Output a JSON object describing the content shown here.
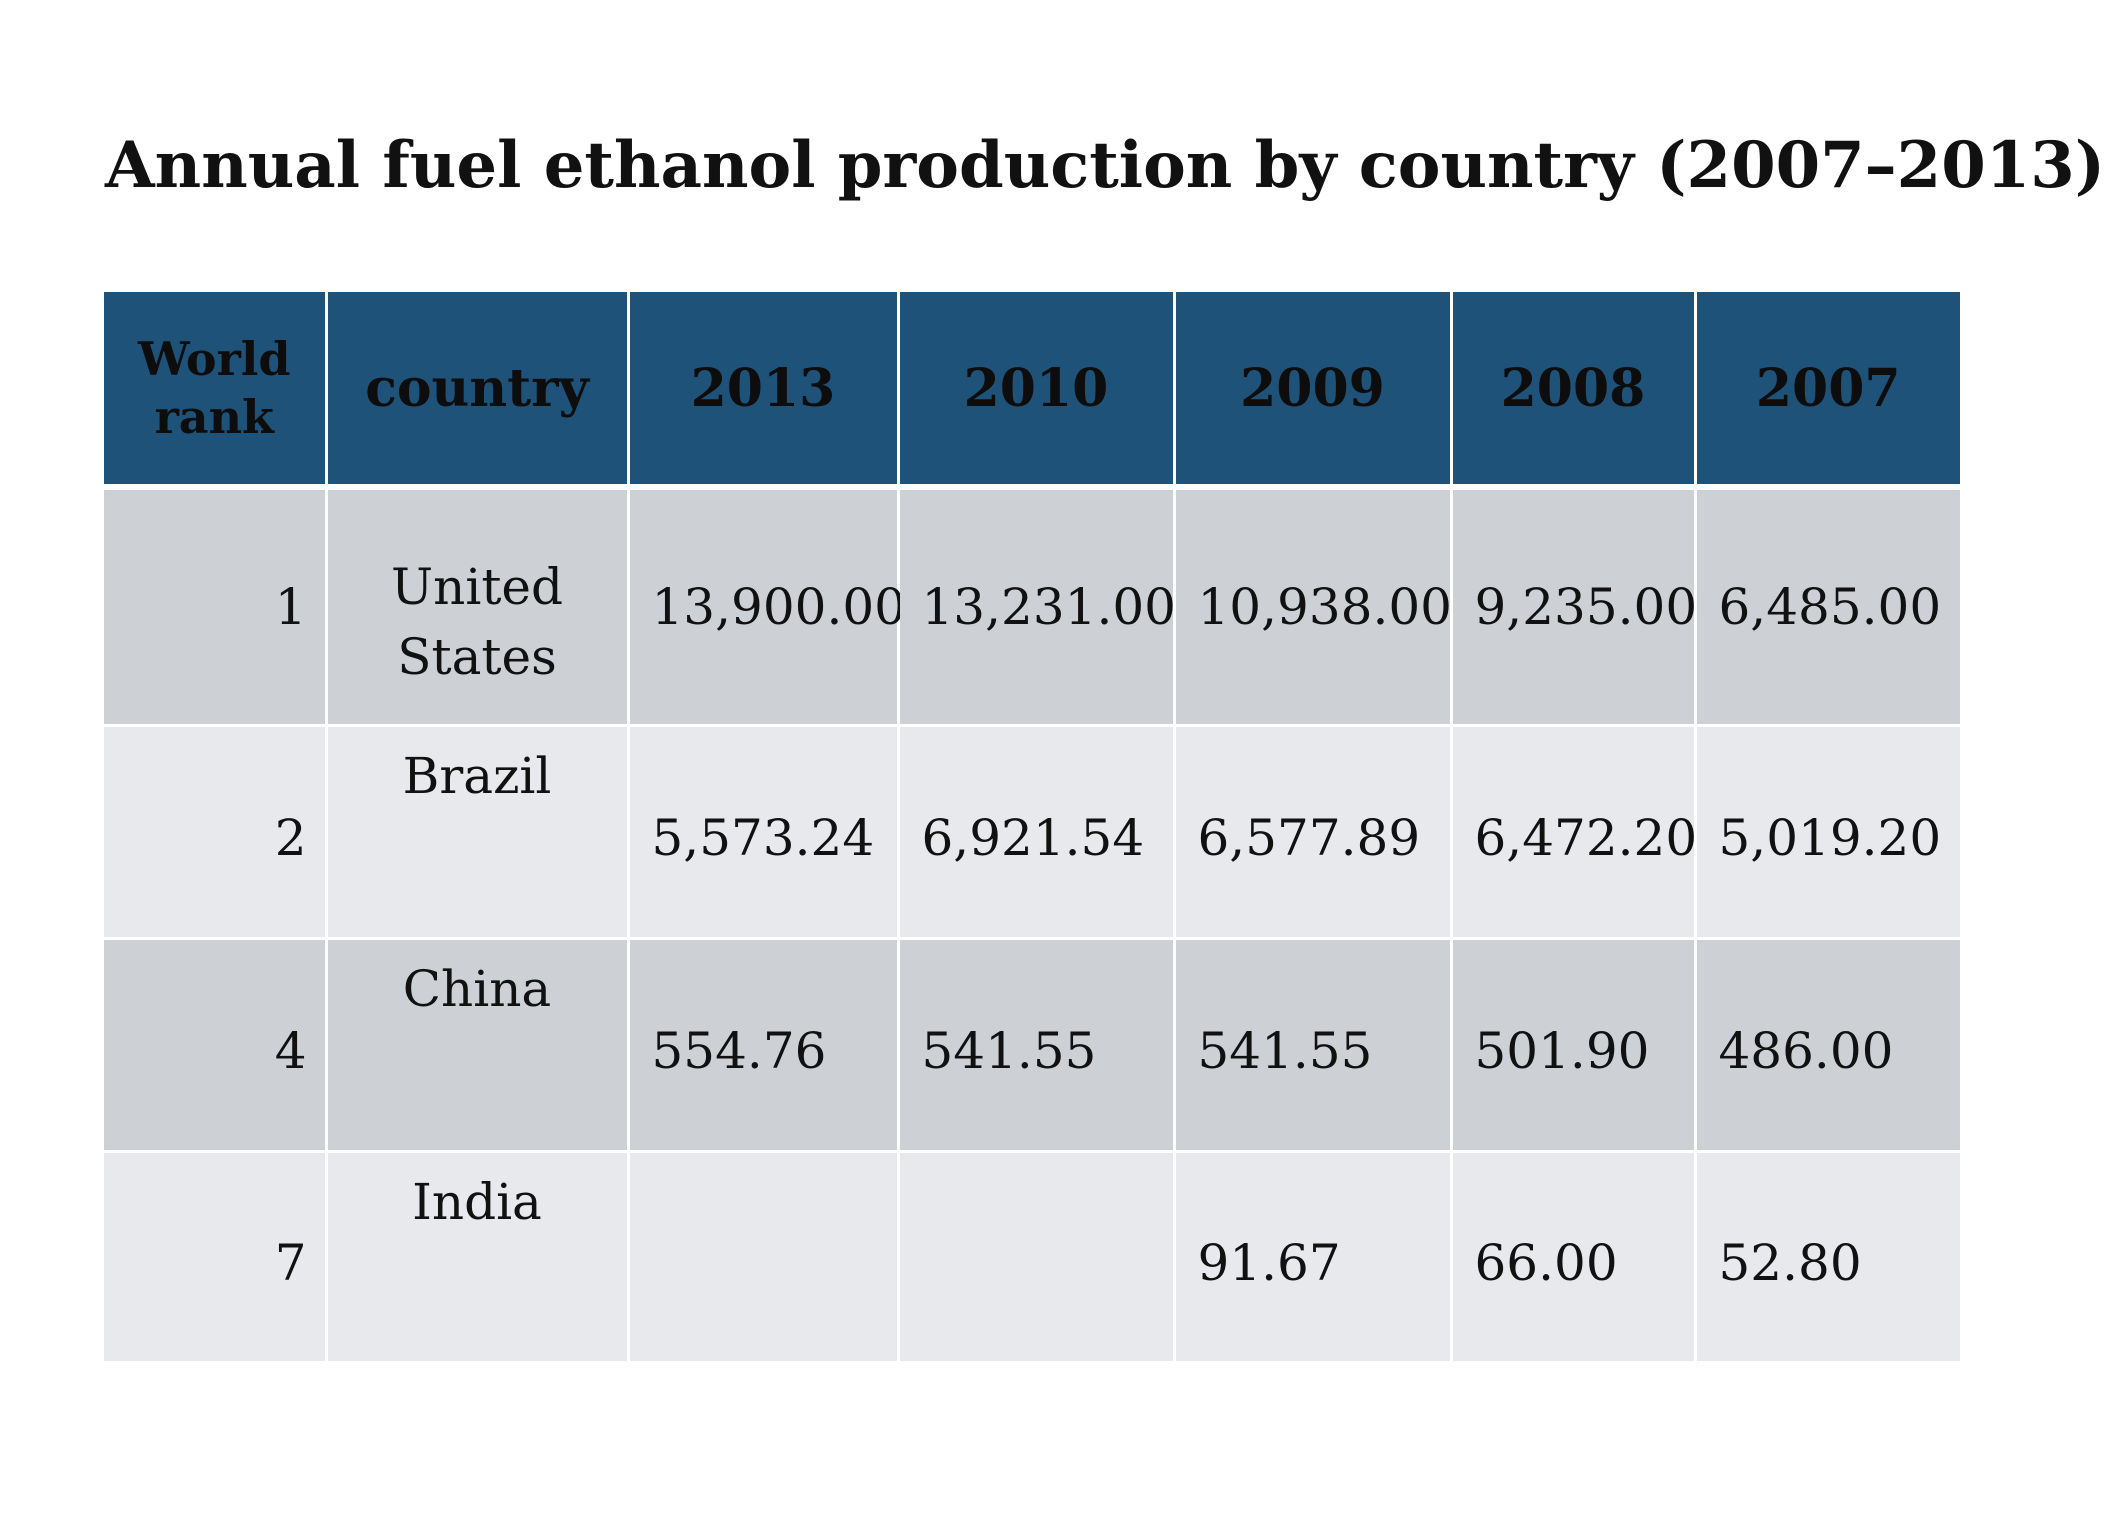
{
  "title": "Annual fuel ethanol production by country (2007–2013)",
  "table": {
    "headers": [
      "World rank",
      "country",
      "2013",
      "2010",
      "2009",
      "2008",
      "2007"
    ],
    "rows": [
      {
        "rank": "1",
        "country": "United States",
        "y2013": "13,900.00",
        "y2010": "13,231.00",
        "y2009": "10,938.00",
        "y2008": "9,235.00",
        "y2007": "6,485.00"
      },
      {
        "rank": "2",
        "country": "Brazil",
        "y2013": "5,573.24",
        "y2010": "6,921.54",
        "y2009": "6,577.89",
        "y2008": "6,472.20",
        "y2007": "5,019.20"
      },
      {
        "rank": "4",
        "country": "China",
        "y2013": "554.76",
        "y2010": "541.55",
        "y2009": "541.55",
        "y2008": "501.90",
        "y2007": "486.00"
      },
      {
        "rank": "7",
        "country": "India",
        "y2013": "",
        "y2010": "",
        "y2009": "91.67",
        "y2008": "66.00",
        "y2007": "52.80"
      }
    ]
  },
  "colors": {
    "header_bg": "#1f5278",
    "row_dark": "#cdd1d6",
    "row_light": "#e8e9ec"
  }
}
